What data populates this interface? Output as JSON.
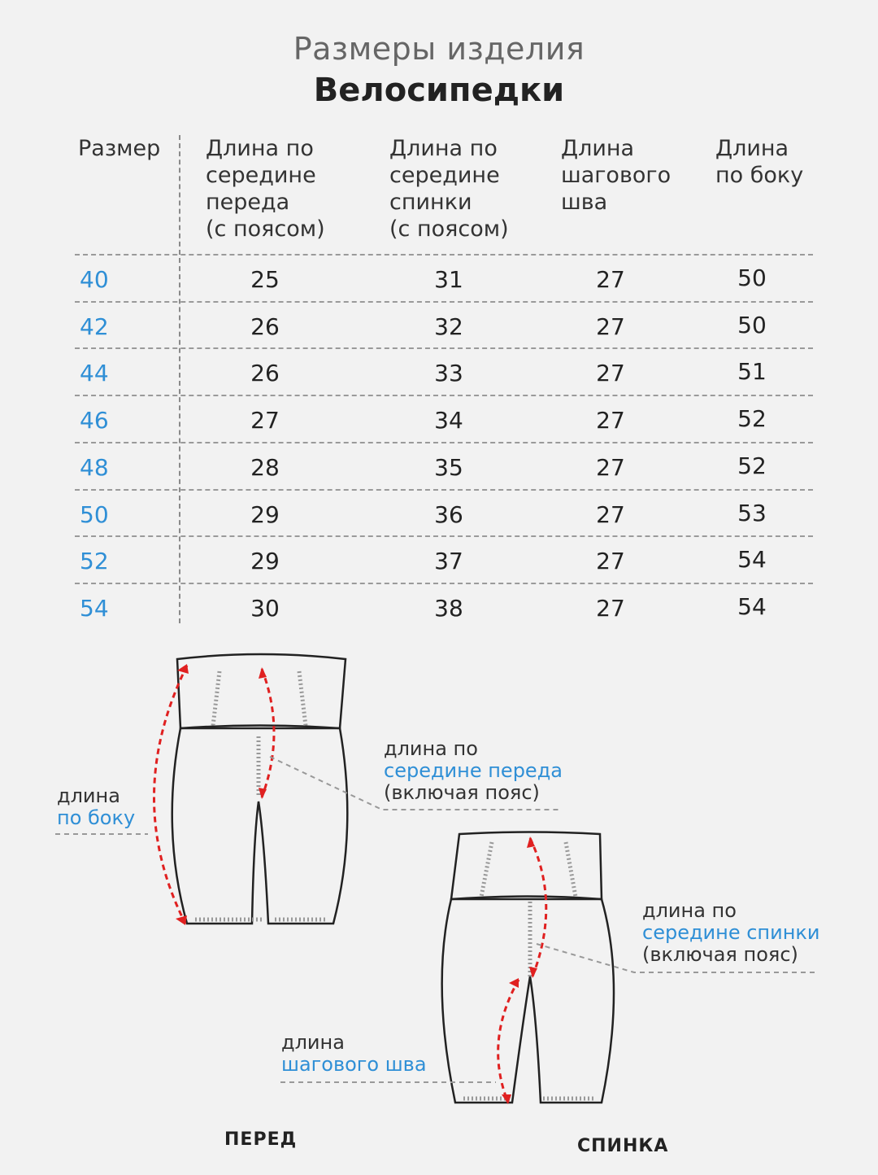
{
  "title": "Размеры изделия",
  "subtitle": "Велосипедки",
  "table": {
    "headers": [
      "Размер",
      "Длина по\nсередине\nпереда\n(с поясом)",
      "Длина по\nсередине\nспинки\n(с поясом)",
      "Длина\nшагового\nшва",
      "Длина\nпо боку"
    ],
    "rows": [
      {
        "size": "40",
        "front": "25",
        "back": "31",
        "inseam": "27",
        "side": "50"
      },
      {
        "size": "42",
        "front": "26",
        "back": "32",
        "inseam": "27",
        "side": "50"
      },
      {
        "size": "44",
        "front": "26",
        "back": "33",
        "inseam": "27",
        "side": "51"
      },
      {
        "size": "46",
        "front": "27",
        "back": "34",
        "inseam": "27",
        "side": "52"
      },
      {
        "size": "48",
        "front": "28",
        "back": "35",
        "inseam": "27",
        "side": "52"
      },
      {
        "size": "50",
        "front": "29",
        "back": "36",
        "inseam": "27",
        "side": "53"
      },
      {
        "size": "52",
        "front": "29",
        "back": "37",
        "inseam": "27",
        "side": "54"
      },
      {
        "size": "54",
        "front": "30",
        "back": "38",
        "inseam": "27",
        "side": "54"
      }
    ]
  },
  "diagram": {
    "side_label": {
      "line1": "длина",
      "line2": "по боку"
    },
    "front_label": {
      "line1": "длина по",
      "line2": "середине переда",
      "line3": "(включая пояс)"
    },
    "back_label": {
      "line1": "длина по",
      "line2": "середине спинки",
      "line3": "(включая пояс)"
    },
    "inseam_label": {
      "line1": "длина",
      "line2": "шагового шва"
    },
    "front_view": "ПЕРЕД",
    "back_view": "СПИНКА"
  },
  "colors": {
    "accent": "#2f8fd6",
    "arrow": "#e02020",
    "outline": "#222222"
  }
}
